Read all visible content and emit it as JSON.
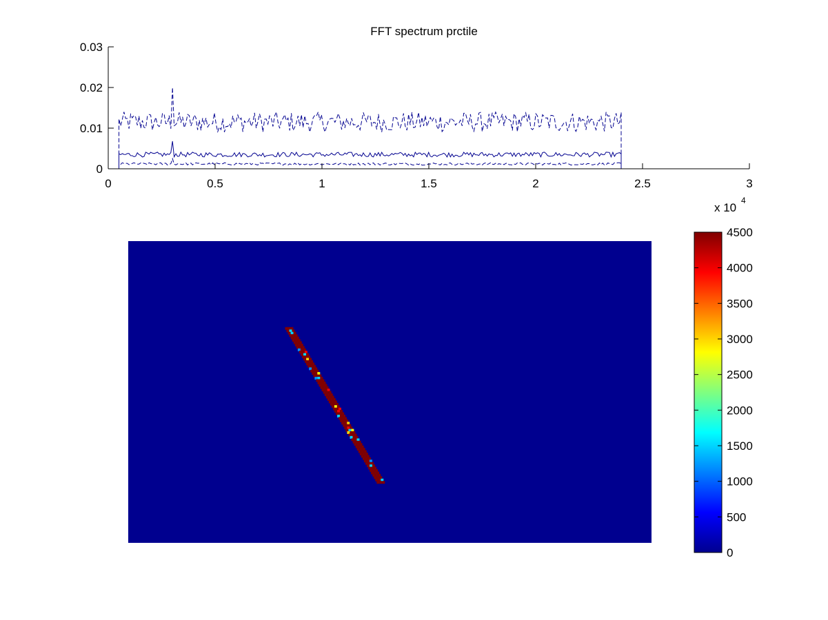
{
  "figure": {
    "background": "#ffffff"
  },
  "chart_data": [
    {
      "type": "line",
      "title": "FFT spectrum prctile",
      "xlim": [
        0,
        30000
      ],
      "ylim": [
        0,
        0.03
      ],
      "x_ticks": [
        0,
        5000,
        10000,
        15000,
        20000,
        25000,
        30000
      ],
      "x_tick_labels": [
        "0",
        "0.5",
        "1",
        "1.5",
        "2",
        "2.5",
        "3"
      ],
      "x_exponent_label": {
        "base": "x 10",
        "exponent": "4"
      },
      "y_ticks": [
        0,
        0.01,
        0.02,
        0.03
      ],
      "y_tick_labels": [
        "0",
        "0.01",
        "0.02",
        "0.03"
      ],
      "line_color": "#00008f",
      "grid": false,
      "series": [
        {
          "style": "dashed",
          "x_range": [
            500,
            24000
          ],
          "base": 0.0115,
          "noise": 0.0025,
          "spike_x": 3000,
          "spike_y": 0.02
        },
        {
          "style": "solid",
          "x_range": [
            500,
            24000
          ],
          "base": 0.0035,
          "noise": 0.0006,
          "spike_x": 3000,
          "spike_y": 0.0068
        },
        {
          "style": "dashed",
          "x_range": [
            500,
            24000
          ],
          "base": 0.0012,
          "noise": 0.0003,
          "spike_x": 3000,
          "spike_y": 0.0025
        }
      ]
    },
    {
      "type": "heatmap",
      "colormap": "jet",
      "background_value": 0,
      "clim": [
        0,
        4500
      ],
      "colorbar_ticks": [
        0,
        500,
        1000,
        1500,
        2000,
        2500,
        3000,
        3500,
        4000,
        4500
      ],
      "colorbar_tick_labels": [
        "0",
        "500",
        "1000",
        "1500",
        "2000",
        "2500",
        "3000",
        "3500",
        "4000",
        "4500"
      ],
      "feature": {
        "description_shape": "diagonal band",
        "start_fraction": [
          0.305,
          0.285
        ],
        "end_fraction": [
          0.48,
          0.795
        ],
        "dominant_value": 4500,
        "speckle_values": [
          3000,
          2800,
          1500,
          1200,
          4000
        ]
      }
    }
  ]
}
